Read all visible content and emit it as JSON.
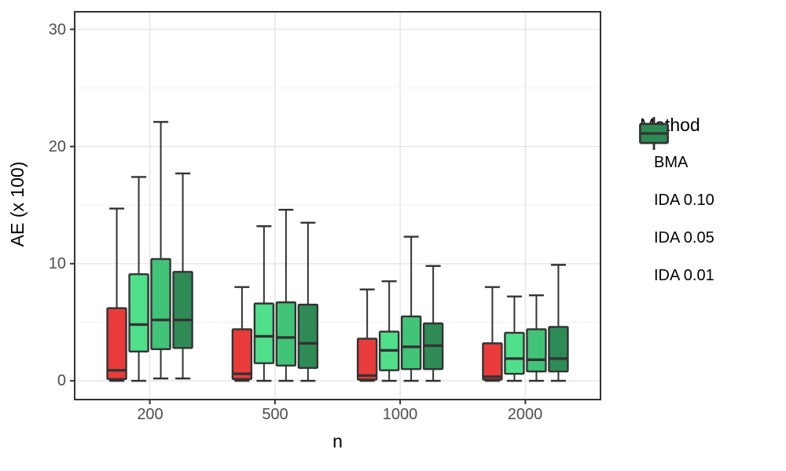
{
  "chart_data": {
    "type": "grouped_boxplot",
    "title": "",
    "xlabel": "n",
    "ylabel": "AE (x 100)",
    "categories": [
      "200",
      "500",
      "1000",
      "2000"
    ],
    "ytick_labels": [
      "0",
      "10",
      "20",
      "30"
    ],
    "ytick_values": [
      0,
      10,
      20,
      30
    ],
    "yminor_values": [
      5,
      15,
      25
    ],
    "ylim": [
      -1.6,
      31.5
    ],
    "grid": "major and minor, light gray on white panel",
    "legend": {
      "title": "Method",
      "position": "right"
    },
    "stats_format": [
      "min",
      "q1",
      "median",
      "q3",
      "max"
    ],
    "series": [
      {
        "name": "BMA",
        "color": "#EA3B3B",
        "boxes": [
          [
            0,
            0.15,
            0.9,
            6.2,
            14.7
          ],
          [
            0,
            0.15,
            0.6,
            4.4,
            8.0
          ],
          [
            0,
            0.1,
            0.45,
            3.6,
            7.8
          ],
          [
            0,
            0.1,
            0.35,
            3.2,
            8.0
          ]
        ]
      },
      {
        "name": "IDA 0.10",
        "color": "#50DF8B",
        "boxes": [
          [
            0,
            2.5,
            4.8,
            9.1,
            17.4
          ],
          [
            0,
            1.5,
            3.8,
            6.6,
            13.2
          ],
          [
            0,
            0.9,
            2.6,
            4.2,
            8.5
          ],
          [
            0,
            0.6,
            1.9,
            4.1,
            7.2
          ]
        ]
      },
      {
        "name": "IDA 0.05",
        "color": "#41C378",
        "boxes": [
          [
            0.2,
            2.7,
            5.2,
            10.4,
            22.1
          ],
          [
            0,
            1.3,
            3.7,
            6.7,
            14.6
          ],
          [
            0,
            1.0,
            2.9,
            5.5,
            12.3
          ],
          [
            0,
            0.8,
            1.8,
            4.4,
            7.3
          ]
        ]
      },
      {
        "name": "IDA 0.01",
        "color": "#2E8B55",
        "boxes": [
          [
            0.2,
            2.8,
            5.2,
            9.3,
            17.7
          ],
          [
            0,
            1.1,
            3.2,
            6.5,
            13.5
          ],
          [
            0,
            1.0,
            3.0,
            4.9,
            9.8
          ],
          [
            0,
            0.8,
            1.9,
            4.6,
            9.9
          ]
        ]
      }
    ],
    "style": {
      "panel_bg": "#FFFFFF",
      "panel_border": "#333333",
      "grid_major": "#E7E7E7",
      "grid_minor": "#F1F1F1",
      "box_border": "#333333",
      "tick_color": "#333333",
      "tick_label_color": "#4D4D4D",
      "axis_title_color": "#000000"
    }
  }
}
